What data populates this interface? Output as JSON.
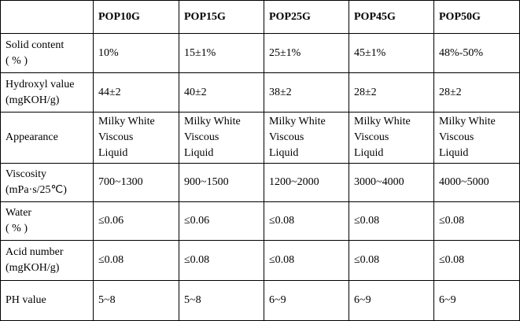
{
  "table": {
    "columns": [
      "POP10G",
      "POP15G",
      "POP25G",
      "POP45G",
      "POP50G"
    ],
    "rows": [
      {
        "label": [
          "Solid content",
          "( % )"
        ],
        "values": [
          "10%",
          "15±1%",
          "25±1%",
          "45±1%",
          "48%-50%"
        ]
      },
      {
        "label": [
          "Hydroxyl value",
          "(mgKOH/g)"
        ],
        "values": [
          "44±2",
          "40±2",
          "38±2",
          "28±2",
          "28±2"
        ]
      },
      {
        "label": [
          "Appearance"
        ],
        "values": [
          [
            "Milky White",
            "Viscous",
            "Liquid"
          ],
          [
            "Milky White",
            "Viscous",
            "Liquid"
          ],
          [
            "Milky White",
            "Viscous",
            "Liquid"
          ],
          [
            "Milky White",
            "Viscous",
            "Liquid"
          ],
          [
            "Milky White",
            "Viscous",
            "Liquid"
          ]
        ]
      },
      {
        "label": [
          "Viscosity",
          "(mPa·s/25℃)"
        ],
        "values": [
          "700~1300",
          "900~1500",
          "1200~2000",
          "3000~4000",
          "4000~5000"
        ]
      },
      {
        "label": [
          "Water",
          "( % )"
        ],
        "values": [
          "≤0.06",
          "≤0.06",
          "≤0.08",
          "≤0.08",
          "≤0.08"
        ]
      },
      {
        "label": [
          "Acid number",
          "(mgKOH/g)"
        ],
        "values": [
          "≤0.08",
          "≤0.08",
          "≤0.08",
          "≤0.08",
          "≤0.08"
        ]
      },
      {
        "label": [
          "PH value"
        ],
        "values": [
          "5~8",
          "5~8",
          "6~9",
          "6~9",
          "6~9"
        ]
      }
    ]
  }
}
